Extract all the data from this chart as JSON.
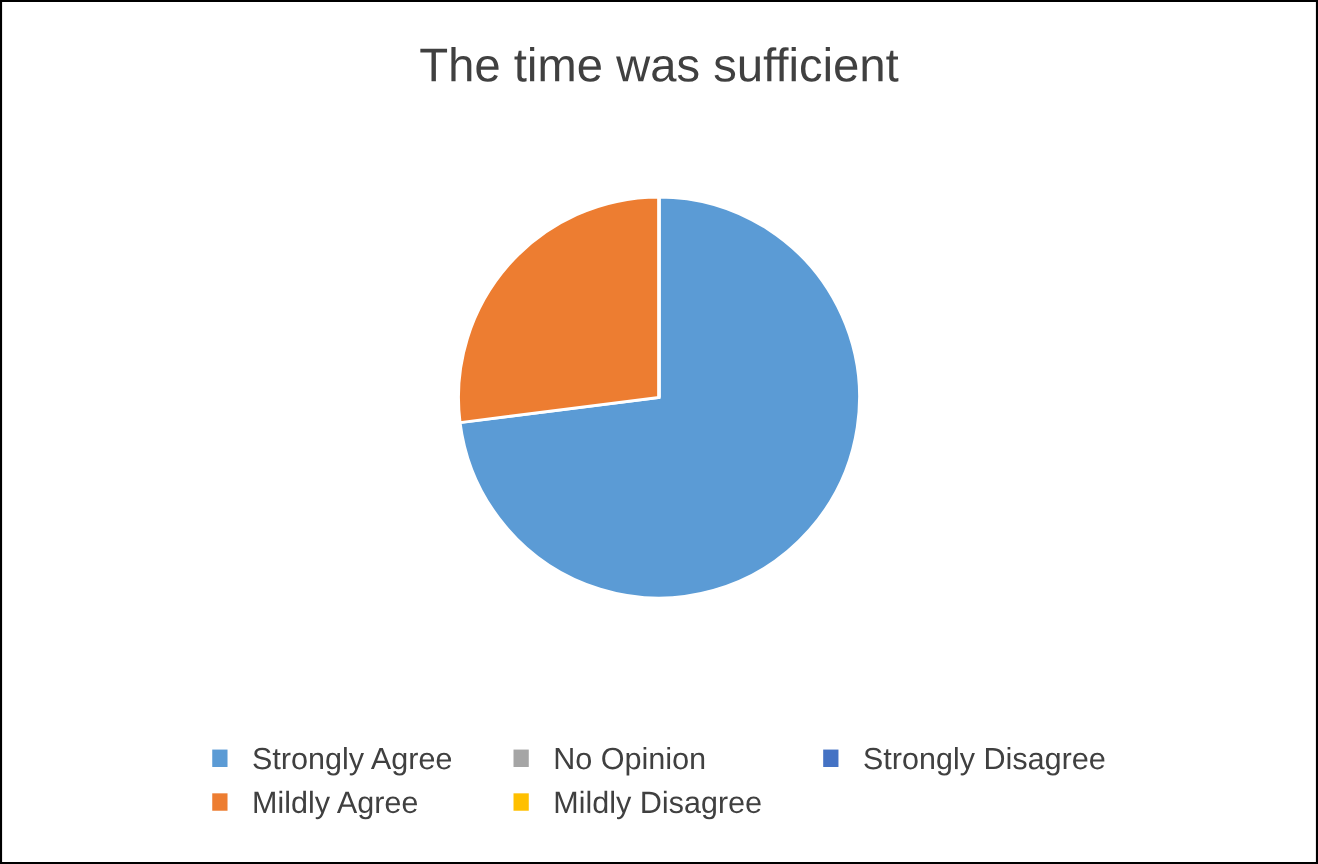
{
  "chart_data": {
    "type": "pie",
    "title": "The time was sufficient",
    "categories": [
      "Strongly Agree",
      "Mildly Agree",
      "No Opinion",
      "Mildly Disagree",
      "Strongly Disagree"
    ],
    "values": [
      73,
      27,
      0,
      0,
      0
    ],
    "colors": [
      "#5b9bd5",
      "#ed7d31",
      "#a5a5a5",
      "#ffc000",
      "#4472c4"
    ],
    "legend": "bottom"
  }
}
